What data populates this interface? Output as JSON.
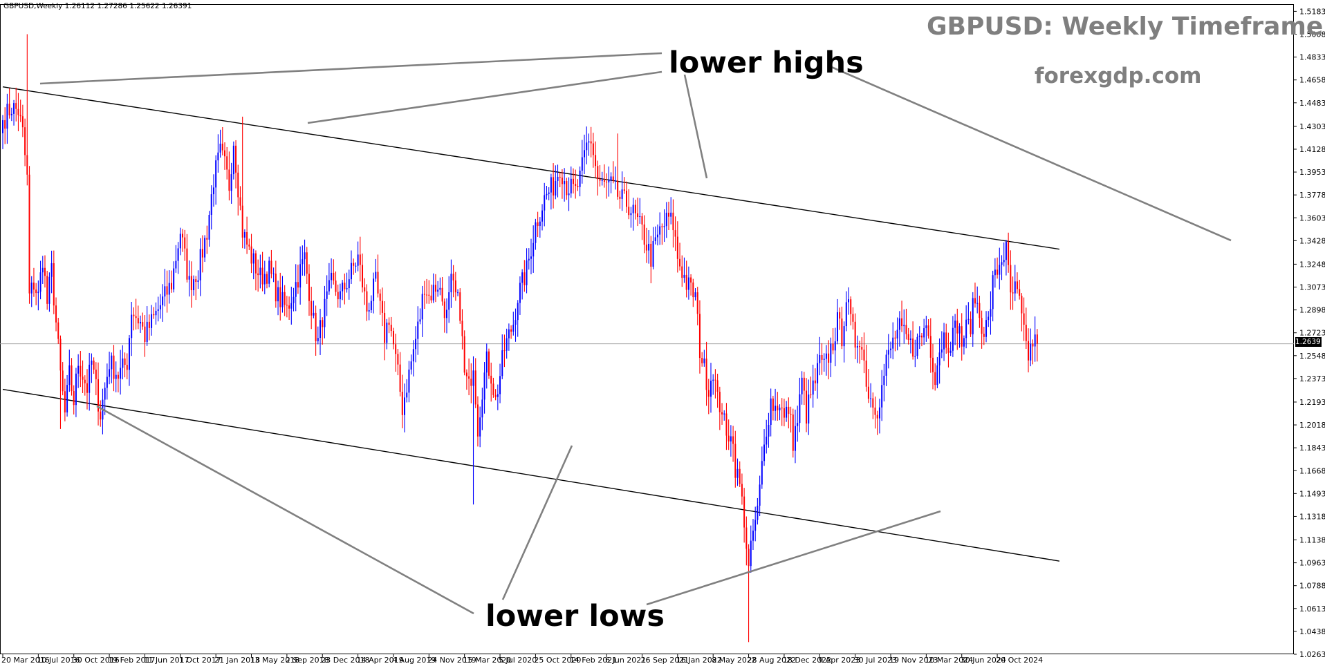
{
  "symbol_info": "GBPUSD,Weekly  1.26112 1.27286 1.25622 1.26391",
  "title": "GBPUSD: Weekly Timeframe",
  "site": "forexgdp.com",
  "annotations": {
    "highs": "lower highs",
    "lows": "lower lows"
  },
  "current_price": "1.26391",
  "colors": {
    "bull": "#0000ff",
    "bear": "#ff0000",
    "channel": "#000000",
    "annotation_lines": "#808080",
    "title_gray": "#7f7f7f"
  },
  "chart_data": {
    "type": "candlestick",
    "title": "GBPUSD: Weekly Timeframe",
    "ylim": [
      1.0263,
      1.5238
    ],
    "yticks": [
      "1.51830",
      "1.50080",
      "1.48330",
      "1.46580",
      "1.44830",
      "1.43030",
      "1.41280",
      "1.39530",
      "1.37780",
      "1.36030",
      "1.34280",
      "1.32480",
      "1.30730",
      "1.28980",
      "1.27230",
      "1.25480",
      "1.23730",
      "1.21930",
      "1.20180",
      "1.18430",
      "1.16680",
      "1.14930",
      "1.13180",
      "1.11380",
      "1.09630",
      "1.07880",
      "1.06130",
      "1.04380",
      "1.02630"
    ],
    "xticks": [
      "20 Mar 2016",
      "10 Jul 2016",
      "30 Oct 2016",
      "19 Feb 2017",
      "11 Jun 2017",
      "1 Oct 2017",
      "21 Jan 2018",
      "13 May 2018",
      "2 Sep 2018",
      "23 Dec 2018",
      "14 Apr 2019",
      "4 Aug 2019",
      "24 Nov 2019",
      "15 Mar 2020",
      "5 Jul 2020",
      "25 Oct 2020",
      "14 Feb 2021",
      "6 Jun 2021",
      "26 Sep 2021",
      "16 Jan 2022",
      "8 May 2022",
      "28 Aug 2022",
      "18 Dec 2022",
      "9 Apr 2023",
      "30 Jul 2023",
      "19 Nov 2023",
      "10 Mar 2024",
      "30 Jun 2024",
      "20 Oct 2024"
    ],
    "bars_per_tick": 16,
    "last_close": 1.26391,
    "anchors": [
      [
        0,
        1.435
      ],
      [
        4,
        1.445
      ],
      [
        7,
        1.442
      ],
      [
        9,
        1.425
      ],
      [
        11,
        1.39
      ],
      [
        12,
        1.3
      ],
      [
        14,
        1.31
      ],
      [
        16,
        1.3
      ],
      [
        18,
        1.33
      ],
      [
        20,
        1.295
      ],
      [
        22,
        1.32
      ],
      [
        24,
        1.28
      ],
      [
        26,
        1.24
      ],
      [
        28,
        1.21
      ],
      [
        30,
        1.24
      ],
      [
        32,
        1.22
      ],
      [
        34,
        1.25
      ],
      [
        38,
        1.23
      ],
      [
        40,
        1.25
      ],
      [
        44,
        1.21
      ],
      [
        48,
        1.25
      ],
      [
        52,
        1.24
      ],
      [
        56,
        1.25
      ],
      [
        58,
        1.29
      ],
      [
        62,
        1.28
      ],
      [
        64,
        1.27
      ],
      [
        70,
        1.29
      ],
      [
        76,
        1.31
      ],
      [
        80,
        1.35
      ],
      [
        84,
        1.31
      ],
      [
        88,
        1.32
      ],
      [
        92,
        1.35
      ],
      [
        95,
        1.39
      ],
      [
        98,
        1.41
      ],
      [
        100,
        1.4
      ],
      [
        102,
        1.385
      ],
      [
        104,
        1.42
      ],
      [
        108,
        1.35
      ],
      [
        112,
        1.33
      ],
      [
        116,
        1.315
      ],
      [
        120,
        1.32
      ],
      [
        124,
        1.3
      ],
      [
        128,
        1.29
      ],
      [
        132,
        1.31
      ],
      [
        136,
        1.33
      ],
      [
        140,
        1.28
      ],
      [
        142,
        1.265
      ],
      [
        144,
        1.285
      ],
      [
        148,
        1.31
      ],
      [
        152,
        1.3
      ],
      [
        156,
        1.315
      ],
      [
        160,
        1.33
      ],
      [
        164,
        1.29
      ],
      [
        168,
        1.31
      ],
      [
        172,
        1.27
      ],
      [
        174,
        1.285
      ],
      [
        178,
        1.24
      ],
      [
        180,
        1.215
      ],
      [
        184,
        1.25
      ],
      [
        188,
        1.285
      ],
      [
        190,
        1.31
      ],
      [
        192,
        1.3
      ],
      [
        196,
        1.31
      ],
      [
        200,
        1.285
      ],
      [
        202,
        1.31
      ],
      [
        204,
        1.3
      ],
      [
        206,
        1.29
      ],
      [
        208,
        1.24
      ],
      [
        210,
        1.23
      ],
      [
        212,
        1.25
      ],
      [
        214,
        1.2
      ],
      [
        216,
        1.23
      ],
      [
        218,
        1.25
      ],
      [
        220,
        1.24
      ],
      [
        222,
        1.22
      ],
      [
        226,
        1.26
      ],
      [
        230,
        1.28
      ],
      [
        232,
        1.3
      ],
      [
        236,
        1.32
      ],
      [
        240,
        1.355
      ],
      [
        244,
        1.375
      ],
      [
        248,
        1.385
      ],
      [
        251,
        1.4
      ],
      [
        254,
        1.385
      ],
      [
        258,
        1.38
      ],
      [
        260,
        1.39
      ],
      [
        263,
        1.415
      ],
      [
        265,
        1.42
      ],
      [
        268,
        1.39
      ],
      [
        270,
        1.385
      ],
      [
        274,
        1.385
      ],
      [
        278,
        1.375
      ],
      [
        282,
        1.37
      ],
      [
        285,
        1.36
      ],
      [
        288,
        1.35
      ],
      [
        290,
        1.34
      ],
      [
        292,
        1.33
      ],
      [
        296,
        1.35
      ],
      [
        300,
        1.36
      ],
      [
        302,
        1.355
      ],
      [
        304,
        1.33
      ],
      [
        308,
        1.31
      ],
      [
        312,
        1.3
      ],
      [
        314,
        1.26
      ],
      [
        318,
        1.23
      ],
      [
        320,
        1.245
      ],
      [
        322,
        1.22
      ],
      [
        324,
        1.215
      ],
      [
        326,
        1.19
      ],
      [
        328,
        1.2
      ],
      [
        330,
        1.17
      ],
      [
        332,
        1.155
      ],
      [
        334,
        1.13
      ],
      [
        336,
        1.09
      ],
      [
        338,
        1.12
      ],
      [
        340,
        1.135
      ],
      [
        342,
        1.17
      ],
      [
        344,
        1.2
      ],
      [
        346,
        1.22
      ],
      [
        348,
        1.215
      ],
      [
        350,
        1.22
      ],
      [
        352,
        1.205
      ],
      [
        354,
        1.215
      ],
      [
        356,
        1.19
      ],
      [
        358,
        1.205
      ],
      [
        360,
        1.235
      ],
      [
        362,
        1.21
      ],
      [
        364,
        1.225
      ],
      [
        366,
        1.235
      ],
      [
        368,
        1.25
      ],
      [
        370,
        1.245
      ],
      [
        372,
        1.255
      ],
      [
        374,
        1.265
      ],
      [
        376,
        1.28
      ],
      [
        378,
        1.27
      ],
      [
        380,
        1.3
      ],
      [
        382,
        1.28
      ],
      [
        384,
        1.265
      ],
      [
        386,
        1.27
      ],
      [
        388,
        1.25
      ],
      [
        390,
        1.225
      ],
      [
        392,
        1.22
      ],
      [
        394,
        1.215
      ],
      [
        396,
        1.23
      ],
      [
        398,
        1.25
      ],
      [
        400,
        1.26
      ],
      [
        402,
        1.27
      ],
      [
        404,
        1.275
      ],
      [
        406,
        1.27
      ],
      [
        408,
        1.265
      ],
      [
        410,
        1.26
      ],
      [
        412,
        1.265
      ],
      [
        414,
        1.27
      ],
      [
        416,
        1.28
      ],
      [
        418,
        1.26
      ],
      [
        420,
        1.24
      ],
      [
        422,
        1.26
      ],
      [
        424,
        1.27
      ],
      [
        426,
        1.265
      ],
      [
        428,
        1.27
      ],
      [
        430,
        1.28
      ],
      [
        432,
        1.265
      ],
      [
        434,
        1.275
      ],
      [
        436,
        1.28
      ],
      [
        438,
        1.3
      ],
      [
        440,
        1.285
      ],
      [
        442,
        1.275
      ],
      [
        444,
        1.28
      ],
      [
        446,
        1.31
      ],
      [
        448,
        1.32
      ],
      [
        450,
        1.33
      ],
      [
        452,
        1.335
      ],
      [
        454,
        1.3
      ],
      [
        456,
        1.305
      ],
      [
        458,
        1.295
      ],
      [
        460,
        1.27
      ],
      [
        462,
        1.255
      ],
      [
        464,
        1.265
      ],
      [
        466,
        1.26391
      ]
    ],
    "channel_upper": [
      [
        0,
        1.4605
      ],
      [
        476,
        1.3363
      ]
    ],
    "channel_lower": [
      [
        0,
        1.229
      ],
      [
        476,
        1.0976
      ]
    ],
    "highs": [
      [
        11,
        1.5008
      ],
      [
        108,
        1.4377
      ],
      [
        277,
        1.4248
      ],
      [
        452,
        1.3434
      ]
    ],
    "lows": [
      [
        26,
        1.1987
      ],
      [
        44,
        1.2004
      ],
      [
        212,
        1.1409
      ],
      [
        336,
        1.0356
      ]
    ]
  }
}
